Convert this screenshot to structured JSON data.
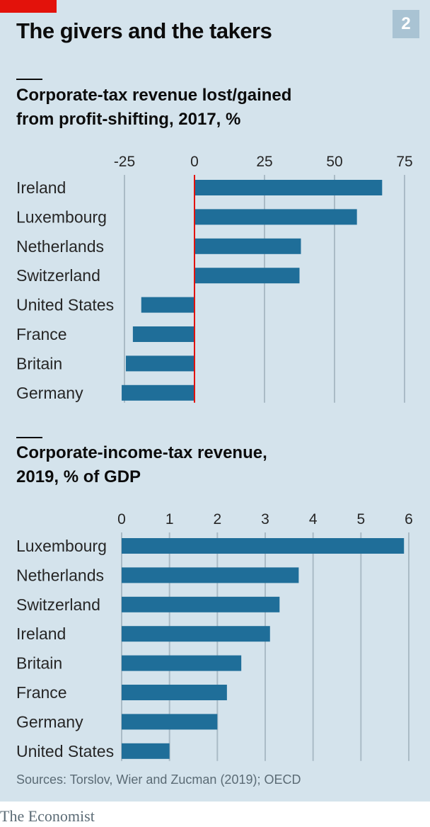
{
  "header": {
    "title": "The givers and the takers",
    "chart_number": "2"
  },
  "source": "Sources: Torslov, Wier and Zucman (2019); OECD",
  "brand": "The Economist",
  "colors": {
    "bar": "#1f6e99",
    "background": "#d4e3ec",
    "gridline": "#aabbc6",
    "zero_line": "#e3120b",
    "accent_tag": "#e3120b",
    "number_box": "#a9c3d3"
  },
  "chart_data": [
    {
      "type": "bar",
      "orientation": "horizontal",
      "title_lines": [
        "Corporate-tax revenue lost/gained",
        "from profit-shifting, 2017, %"
      ],
      "categories": [
        "Ireland",
        "Luxembourg",
        "Netherlands",
        "Switzerland",
        "United States",
        "France",
        "Britain",
        "Germany"
      ],
      "values": [
        67,
        58,
        38,
        37.5,
        -19,
        -22,
        -24.5,
        -26
      ],
      "xlim": [
        -25,
        75
      ],
      "ticks": [
        -25,
        0,
        25,
        50,
        75
      ],
      "tick_labels": [
        "-25",
        "0",
        "25",
        "50",
        "75"
      ],
      "grid": true,
      "zero_line": true
    },
    {
      "type": "bar",
      "orientation": "horizontal",
      "title_lines": [
        "Corporate-income-tax revenue,",
        "2019, % of GDP"
      ],
      "categories": [
        "Luxembourg",
        "Netherlands",
        "Switzerland",
        "Ireland",
        "Britain",
        "France",
        "Germany",
        "United States"
      ],
      "values": [
        5.9,
        3.7,
        3.3,
        3.1,
        2.5,
        2.2,
        2.0,
        1.0
      ],
      "xlim": [
        0,
        6
      ],
      "ticks": [
        0,
        1,
        2,
        3,
        4,
        5,
        6
      ],
      "tick_labels": [
        "0",
        "1",
        "2",
        "3",
        "4",
        "5",
        "6"
      ],
      "grid": true,
      "zero_line": false
    }
  ]
}
